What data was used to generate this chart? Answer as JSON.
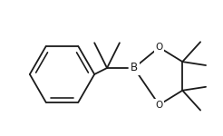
{
  "background_color": "#ffffff",
  "line_color": "#1a1a1a",
  "line_width": 1.3,
  "font_size": 7.5,
  "B_label": "B",
  "O_top_label": "O",
  "O_bot_label": "O"
}
